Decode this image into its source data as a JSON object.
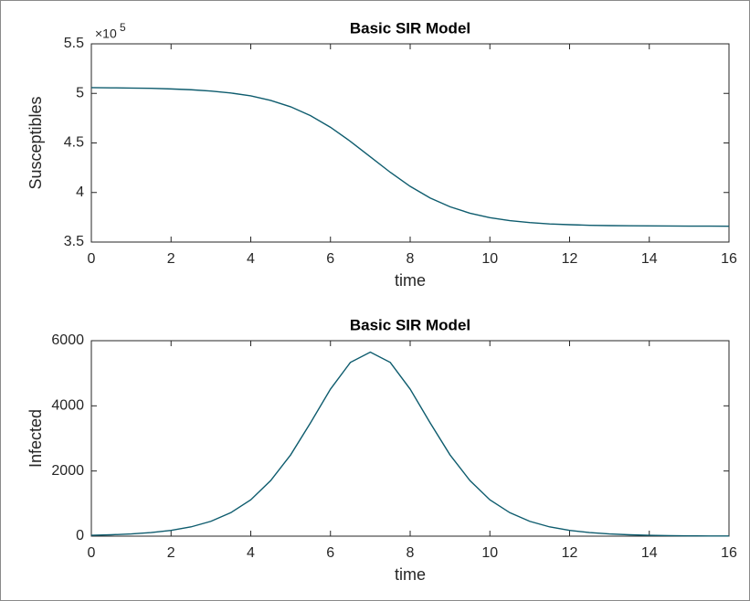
{
  "chart_data": [
    {
      "type": "line",
      "title": "Basic SIR Model",
      "xlabel": "time",
      "ylabel": "Susceptibles",
      "y_multiplier": "×10",
      "y_multiplier_exponent": "5",
      "x": [
        0,
        0.5,
        1,
        1.5,
        2,
        2.5,
        3,
        3.5,
        4,
        4.5,
        5,
        5.5,
        6,
        6.5,
        7,
        7.5,
        8,
        8.5,
        9,
        9.5,
        10,
        10.5,
        11,
        11.5,
        12,
        12.5,
        13,
        13.5,
        14,
        14.5,
        15,
        15.5,
        16
      ],
      "values": [
        5.058,
        5.056,
        5.054,
        5.051,
        5.045,
        5.037,
        5.024,
        5.004,
        4.975,
        4.929,
        4.865,
        4.775,
        4.658,
        4.516,
        4.36,
        4.204,
        4.062,
        3.945,
        3.856,
        3.791,
        3.746,
        3.716,
        3.696,
        3.683,
        3.675,
        3.669,
        3.666,
        3.664,
        3.663,
        3.662,
        3.661,
        3.661,
        3.66
      ],
      "color": "#0e5c6e",
      "xlim": [
        0,
        16
      ],
      "xticks": [
        0,
        2,
        4,
        6,
        8,
        10,
        12,
        14,
        16
      ],
      "ylim": [
        3.5,
        5.5
      ],
      "yticks": [
        3.5,
        4,
        4.5,
        5,
        5.5
      ]
    },
    {
      "type": "line",
      "title": "Basic SIR Model",
      "xlabel": "time",
      "ylabel": "Infected",
      "x": [
        0,
        0.5,
        1,
        1.5,
        2,
        2.5,
        3,
        3.5,
        4,
        4.5,
        5,
        5.5,
        6,
        6.5,
        7,
        7.5,
        8,
        8.5,
        9,
        9.5,
        10,
        10.5,
        11,
        11.5,
        12,
        12.5,
        13,
        13.5,
        14,
        14.5,
        15,
        15.5,
        16
      ],
      "values": [
        26,
        42,
        68,
        110,
        178,
        284,
        456,
        721,
        1116,
        1706,
        2494,
        3481,
        4512,
        5333,
        5650,
        5333,
        4512,
        3481,
        2494,
        1706,
        1116,
        721,
        456,
        284,
        178,
        110,
        68,
        42,
        26,
        16,
        10,
        6,
        4
      ],
      "color": "#0e5c6e",
      "xlim": [
        0,
        16
      ],
      "xticks": [
        0,
        2,
        4,
        6,
        8,
        10,
        12,
        14,
        16
      ],
      "ylim": [
        0,
        6000
      ],
      "yticks": [
        0,
        2000,
        4000,
        6000
      ]
    }
  ]
}
